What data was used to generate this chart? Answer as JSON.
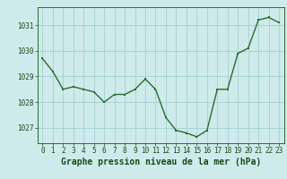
{
  "x": [
    0,
    1,
    2,
    3,
    4,
    5,
    6,
    7,
    8,
    9,
    10,
    11,
    12,
    13,
    14,
    15,
    16,
    17,
    18,
    19,
    20,
    21,
    22,
    23
  ],
  "y": [
    1029.7,
    1029.2,
    1028.5,
    1028.6,
    1028.5,
    1028.4,
    1028.0,
    1028.3,
    1028.3,
    1028.5,
    1028.9,
    1028.5,
    1027.4,
    1026.9,
    1026.8,
    1026.65,
    1026.9,
    1028.5,
    1028.5,
    1029.9,
    1030.1,
    1031.2,
    1031.3,
    1031.1
  ],
  "line_color": "#2d6a2d",
  "marker_color": "#2d6a2d",
  "bg_color": "#ceeaea",
  "grid_color": "#a8d4d4",
  "xlabel": "Graphe pression niveau de la mer (hPa)",
  "xlabel_color": "#1a4a1a",
  "ylabel_ticks": [
    1027,
    1028,
    1029,
    1030,
    1031
  ],
  "xtick_labels": [
    "0",
    "1",
    "2",
    "3",
    "4",
    "5",
    "6",
    "7",
    "8",
    "9",
    "10",
    "11",
    "12",
    "13",
    "14",
    "15",
    "16",
    "17",
    "18",
    "19",
    "20",
    "21",
    "22",
    "23"
  ],
  "ylim": [
    1026.4,
    1031.7
  ],
  "xlim": [
    -0.5,
    23.5
  ],
  "tick_fontsize": 5.5,
  "xlabel_fontsize": 7.0
}
